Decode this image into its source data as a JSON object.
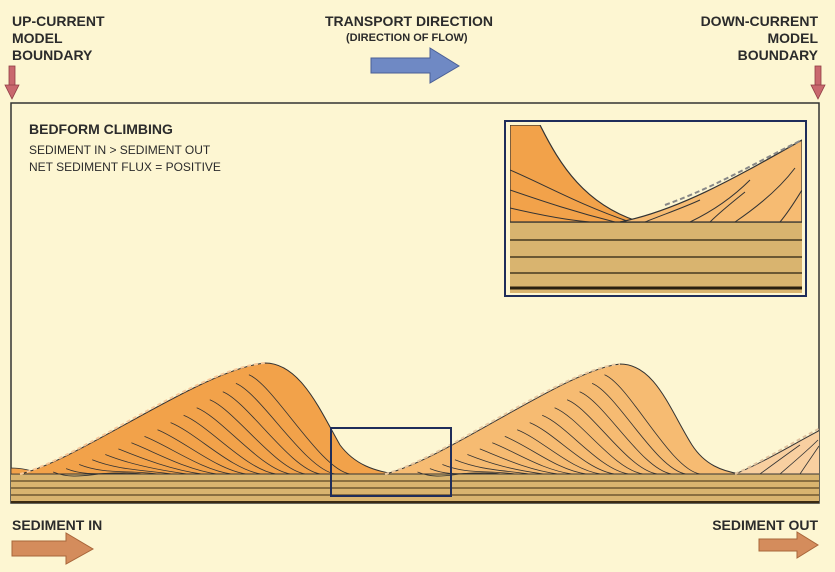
{
  "labels": {
    "up_current": [
      "UP-CURRENT",
      "MODEL",
      "BOUNDARY"
    ],
    "down_current": [
      "DOWN-CURRENT",
      "MODEL",
      "BOUNDARY"
    ],
    "transport_title": "TRANSPORT DIRECTION",
    "transport_sub": "(DIRECTION OF FLOW)",
    "sediment_in": "SEDIMENT IN",
    "sediment_out": "SEDIMENT OUT"
  },
  "panel": {
    "title": "BEDFORM CLIMBING",
    "line1": "SEDIMENT IN > SEDIMENT OUT",
    "line2": "NET SEDIMENT FLUX = POSITIVE"
  },
  "colors": {
    "background": "#fdf6d2",
    "boundary_arrow": "#c9686e",
    "flow_arrow": "#6f89c4",
    "sediment_arrow": "#d48c5c",
    "bedform": "#f2a24a",
    "bedform_light": "#f6bb72",
    "substrate": "#d9b46f",
    "highlight_box": "#1f2d5a"
  }
}
